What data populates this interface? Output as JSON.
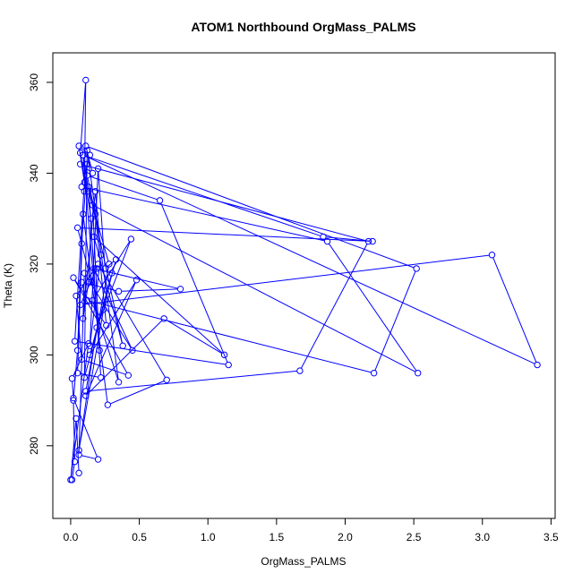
{
  "chart_data": {
    "type": "scatter",
    "title": "ATOM1 Northbound OrgMass_PALMS",
    "xlabel": "OrgMass_PALMS",
    "ylabel": "Theta (K)",
    "xlim": [
      -0.13,
      3.53
    ],
    "ylim": [
      264,
      366.5
    ],
    "x_ticks": [
      0.0,
      0.5,
      1.0,
      1.5,
      2.0,
      2.5,
      3.0,
      3.5
    ],
    "x_tick_labels": [
      "0.0",
      "0.5",
      "1.0",
      "1.5",
      "2.0",
      "2.5",
      "3.0",
      "3.5"
    ],
    "y_ticks": [
      280,
      300,
      320,
      340,
      360
    ],
    "y_tick_labels": [
      "280",
      "300",
      "320",
      "340",
      "360"
    ],
    "grid": false,
    "legend": "none",
    "connected": true,
    "marker": "open-circle",
    "color": "#0000ff",
    "series": [
      {
        "x": [
          0.01,
          0.03,
          0.02,
          0.05,
          0.08,
          0.12,
          0.1,
          0.11,
          0.07,
          0.15,
          0.13,
          0.09,
          0.18,
          0.22,
          0.14,
          0.2,
          0.25,
          0.33,
          0.1,
          0.12,
          0.35,
          0.16,
          0.44,
          0.19,
          0.06,
          0.24,
          0.3,
          0.14,
          0.48,
          0.11,
          0.68,
          1.12,
          0.17,
          0.38,
          0.13,
          0.22,
          0.05,
          0.09,
          0.27,
          0.7,
          0.2,
          0.04,
          0.08,
          0.42,
          0.02,
          0.26,
          0.18,
          0.12,
          0.65,
          1.15,
          0.03,
          0.1,
          0.06,
          0.14,
          0.08,
          1.87,
          2.53,
          0.16,
          0.21,
          0.09,
          1.84,
          2.2,
          0.05,
          0.15,
          0.19,
          0.07,
          3.07,
          3.4,
          0.09,
          0.13,
          0.28,
          0.11,
          1.67,
          2.17,
          0.07,
          0.16,
          0.11,
          2.52,
          2.21,
          0.12,
          0.08,
          0.35,
          0.8,
          0.17,
          0.45,
          0.1,
          0.06,
          0.2,
          0.02,
          0.01,
          0.13,
          0.0,
          0.04,
          0.06
        ],
        "y": [
          272.5,
          276.5,
          290,
          301,
          324.5,
          342,
          336,
          360.5,
          344.5,
          330,
          316,
          308,
          336,
          322,
          302,
          341,
          319,
          321,
          295,
          345,
          294,
          312,
          325.5,
          306,
          279,
          310,
          318,
          300,
          316.5,
          291,
          308,
          300,
          326,
          302,
          337,
          295,
          296,
          331,
          289,
          294.5,
          320,
          313,
          299,
          295.5,
          317,
          306.5,
          331,
          339.5,
          334,
          297.8,
          303,
          338,
          346,
          344,
          337,
          325,
          296,
          333,
          301,
          344,
          326,
          325,
          328,
          316,
          319,
          311,
          322,
          297.8,
          344,
          336,
          320,
          292,
          296.5,
          325,
          342,
          340,
          346,
          319,
          296,
          312,
          316,
          314,
          314.5,
          319,
          301,
          318,
          278,
          277,
          290.5,
          294.8,
          302.5,
          272.5,
          286,
          274
        ]
      }
    ]
  }
}
